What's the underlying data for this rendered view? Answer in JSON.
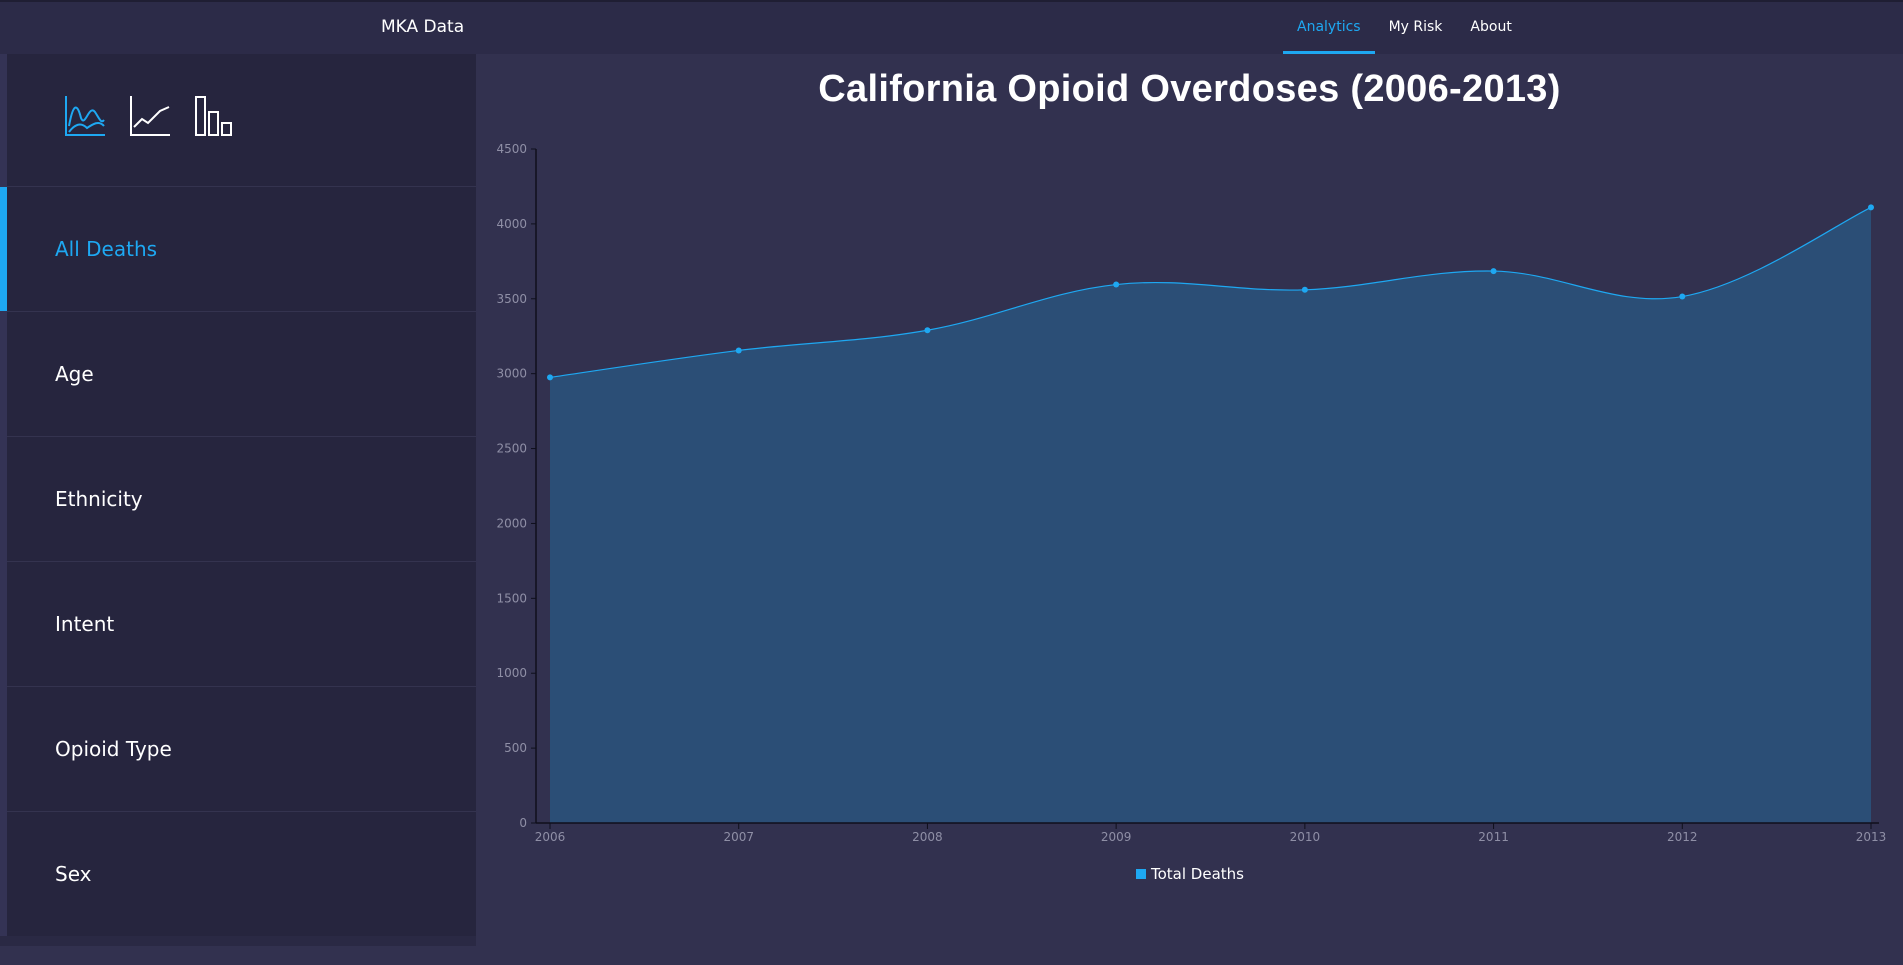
{
  "app": {
    "brand": "MKA Data"
  },
  "nav": {
    "items": [
      {
        "label": "Analytics",
        "active": true
      },
      {
        "label": "My Risk",
        "active": false
      },
      {
        "label": "About",
        "active": false
      }
    ]
  },
  "sidebar": {
    "chart_icons": [
      {
        "icon": "area-chart-icon",
        "active": true
      },
      {
        "icon": "line-chart-icon",
        "active": false
      },
      {
        "icon": "bar-chart-icon",
        "active": false
      }
    ],
    "items": [
      {
        "label": "All Deaths",
        "active": true
      },
      {
        "label": "Age",
        "active": false
      },
      {
        "label": "Ethnicity",
        "active": false
      },
      {
        "label": "Intent",
        "active": false
      },
      {
        "label": "Opioid Type",
        "active": false
      },
      {
        "label": "Sex",
        "active": false
      }
    ]
  },
  "colors": {
    "accent": "#1ea8f2",
    "area_fill": "#2b4e76",
    "axis": "#0f0f1c",
    "tick_text": "#8f8fa6"
  },
  "chart_data": {
    "type": "area",
    "title": "California Opioid Overdoses (2006-2013)",
    "x": [
      2006,
      2007,
      2008,
      2009,
      2010,
      2011,
      2012,
      2013
    ],
    "series": [
      {
        "name": "Total Deaths",
        "values": [
          2975,
          3155,
          3290,
          3595,
          3560,
          3685,
          3515,
          4110
        ]
      }
    ],
    "ylim": [
      0,
      4500
    ],
    "yticks": [
      0,
      500,
      1000,
      1500,
      2000,
      2500,
      3000,
      3500,
      4000,
      4500
    ],
    "xlabel": "",
    "ylabel": "",
    "legend_position": "bottom-center"
  }
}
